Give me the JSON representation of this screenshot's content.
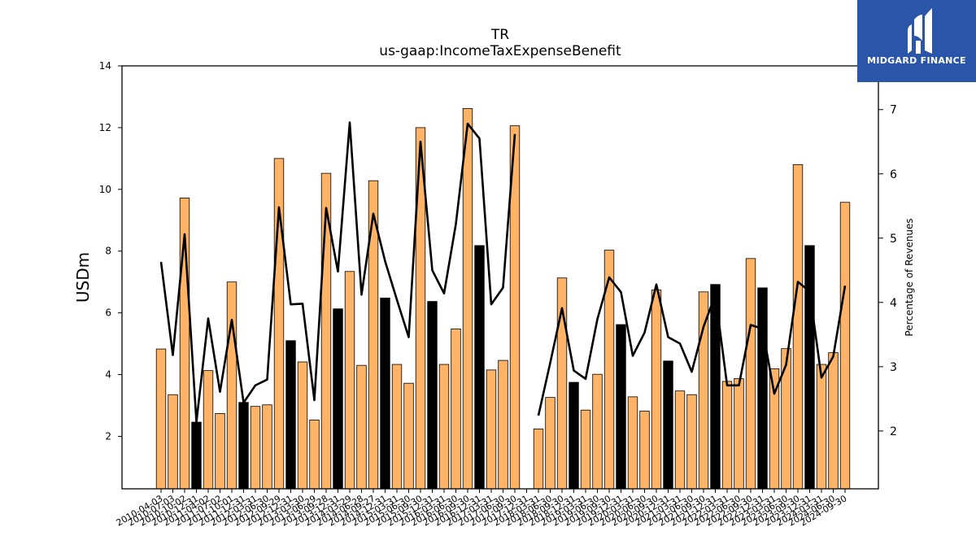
{
  "brand": {
    "name": "MIDGARD FINANCE",
    "bg_color": "#2a55a8"
  },
  "chart_data": {
    "type": "bar",
    "title": "TR",
    "subtitle": "us-gaap:IncomeTaxExpenseBenefit",
    "ylabel": "USDm",
    "y2label": "Percentage of Revenues",
    "ylim": [
      0.3,
      14
    ],
    "y2lim": [
      1.1,
      7.68
    ],
    "yticks": [
      2,
      4,
      6,
      8,
      10,
      12,
      14
    ],
    "y2ticks": [
      2,
      3,
      4,
      5,
      6,
      7
    ],
    "colors": {
      "bar": "#ffb366",
      "bar_annual": "#000000",
      "line": "#000000"
    },
    "categories": [
      "2010-04-03",
      "2010-07-03",
      "2010-10-02",
      "2010-12-31",
      "2011-04-02",
      "2011-07-02",
      "2011-10-01",
      "2011-12-31",
      "2012-03-31",
      "2012-06-30",
      "2012-09-29",
      "2012-12-31",
      "2013-03-30",
      "2013-06-29",
      "2013-09-28",
      "2013-12-31",
      "2014-03-29",
      "2014-06-28",
      "2014-09-27",
      "2014-12-31",
      "2015-03-31",
      "2015-06-30",
      "2015-09-30",
      "2015-12-31",
      "2016-03-31",
      "2016-06-30",
      "2016-09-30",
      "2016-12-31",
      "2017-03-31",
      "2017-06-30",
      "2017-09-30",
      "2017-12-31",
      "2018-03-31",
      "2018-06-30",
      "2018-09-30",
      "2018-12-31",
      "2019-03-31",
      "2019-06-30",
      "2019-09-30",
      "2019-12-31",
      "2020-03-31",
      "2020-06-30",
      "2020-09-30",
      "2020-12-31",
      "2021-03-31",
      "2021-06-30",
      "2021-09-30",
      "2021-12-31",
      "2022-03-31",
      "2022-06-30",
      "2022-09-30",
      "2022-12-31",
      "2023-03-31",
      "2023-06-30",
      "2023-09-30",
      "2023-12-31",
      "2024-03-31",
      "2024-06-30",
      "2024-09-30"
    ],
    "xticklabels": [
      "2010-04-03",
      "2010-07-03",
      "2010-10-02",
      "2010-12-31",
      "2011-04-02",
      "2011-07-02",
      "2011-10-01",
      "2011-12-31",
      "2012-03-31",
      "2012-06-30",
      "2012-09-29",
      "2012-12-31",
      "2013-03-30",
      "2013-06-29",
      "2013-09-28",
      "2013-12-31",
      "2014-03-29",
      "2014-06-28",
      "2014-09-27",
      "2014-12-31",
      "2015-03-31",
      "2015-06-30",
      "2015-09-30",
      "2015-12-31",
      "2016-03-31",
      "2016-06-30",
      "2016-09-30",
      "2016-12-31",
      "2017-03-31",
      "2017-06-30",
      "2017-09-30",
      "2017-12-31",
      "2018-03-31",
      "2018-06-30",
      "2018-09-30",
      "2018-12-31",
      "2019-03-31",
      "2019-06-30",
      "2019-09-30",
      "2019-12-31",
      "2020-03-31",
      "2020-06-30",
      "2020-09-30",
      "2020-12-31",
      "2021-03-31",
      "2021-06-30",
      "2021-09-30",
      "2021-12-31",
      "2022-03-31",
      "2022-06-30",
      "2022-09-30",
      "2022-12-31",
      "2023-03-31",
      "2023-06-30",
      "2023-09-30",
      "2023-12-31",
      "2024-03-31",
      "2024-06-30",
      "2024-09-30"
    ],
    "values": [
      4.83,
      3.35,
      9.72,
      2.46,
      4.13,
      2.74,
      7.0,
      3.1,
      2.97,
      3.02,
      11.0,
      5.1,
      4.41,
      2.53,
      10.52,
      6.13,
      7.34,
      4.3,
      10.28,
      6.48,
      4.33,
      3.72,
      12.0,
      6.37,
      4.33,
      5.48,
      12.62,
      8.18,
      4.15,
      4.46,
      12.06,
      null,
      2.24,
      3.26,
      7.13,
      3.75,
      2.85,
      4.01,
      8.03,
      5.62,
      3.28,
      2.82,
      6.74,
      4.44,
      3.47,
      3.35,
      6.68,
      6.92,
      3.78,
      3.87,
      7.76,
      6.81,
      4.19,
      4.84,
      10.8,
      8.18,
      4.33,
      4.71,
      9.58
    ],
    "annual": [
      false,
      false,
      false,
      true,
      false,
      false,
      false,
      true,
      false,
      false,
      false,
      true,
      false,
      false,
      false,
      true,
      false,
      false,
      false,
      true,
      false,
      false,
      false,
      true,
      false,
      false,
      false,
      true,
      false,
      false,
      false,
      true,
      false,
      false,
      false,
      true,
      false,
      false,
      false,
      true,
      false,
      false,
      false,
      true,
      false,
      false,
      false,
      true,
      false,
      false,
      false,
      true,
      false,
      false,
      false,
      true,
      false,
      false,
      false
    ],
    "series": [
      {
        "name": "",
        "axis": "right",
        "values": [
          4.63,
          3.18,
          5.06,
          2.14,
          3.75,
          2.61,
          3.73,
          2.44,
          2.71,
          2.8,
          5.48,
          3.97,
          3.98,
          2.48,
          5.47,
          4.48,
          6.8,
          4.12,
          5.38,
          4.64,
          4.04,
          3.46,
          6.5,
          4.5,
          4.14,
          5.22,
          6.78,
          6.55,
          3.97,
          4.23,
          6.62,
          null,
          2.24,
          3.06,
          3.91,
          2.94,
          2.81,
          3.74,
          4.39,
          4.16,
          3.17,
          3.53,
          4.28,
          3.46,
          3.36,
          2.92,
          3.62,
          4.12,
          2.71,
          2.71,
          3.65,
          3.59,
          2.58,
          3.03,
          4.32,
          4.17,
          2.83,
          3.16,
          4.26
        ]
      }
    ],
    "grid": false,
    "legend": "none"
  }
}
